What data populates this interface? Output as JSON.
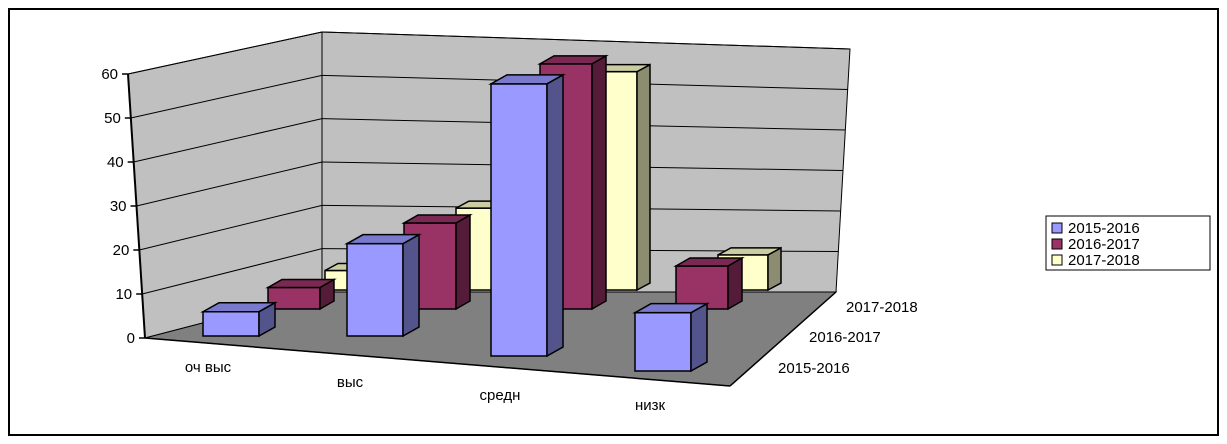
{
  "chart_data": {
    "type": "bar",
    "subtype": "3d-clustered-depth",
    "categories": [
      "оч выс",
      "выс",
      "средн",
      "низк"
    ],
    "depth_labels": [
      "2015-2016",
      "2016-2017",
      "2017-2018"
    ],
    "series": [
      {
        "name": "2015-2016",
        "values": [
          5,
          19,
          56,
          12
        ]
      },
      {
        "name": "2016-2017",
        "values": [
          5,
          20,
          57,
          10
        ]
      },
      {
        "name": "2017-2018",
        "values": [
          5,
          21,
          56,
          9
        ]
      }
    ],
    "ylim": [
      0,
      60
    ],
    "yticks": [
      "0",
      "10",
      "20",
      "30",
      "40",
      "50",
      "60"
    ],
    "grid": true,
    "legend_position": "right",
    "colors": {
      "2015-2016": "#9999ff",
      "2016-2017": "#993366",
      "2017-2018": "#ffffcc",
      "walls": "#c0c0c0",
      "floor": "#808080"
    }
  }
}
